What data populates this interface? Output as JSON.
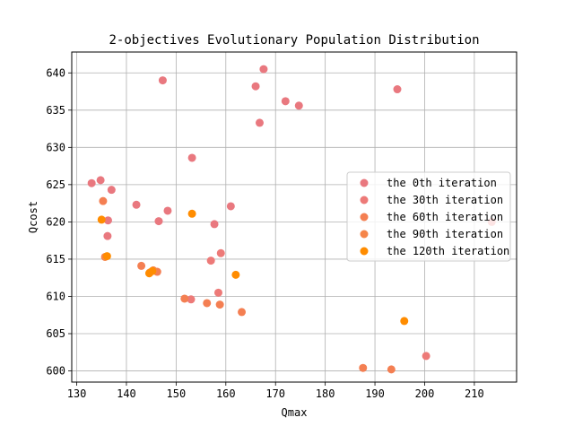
{
  "chart_data": {
    "type": "scatter",
    "title": "2-objectives Evolutionary Population Distribution",
    "xlabel": "Qmax",
    "ylabel": "Qcost",
    "xlim": [
      129,
      218.5
    ],
    "ylim": [
      598.5,
      642.8
    ],
    "xticks": [
      130,
      140,
      150,
      160,
      170,
      180,
      190,
      200,
      210
    ],
    "yticks": [
      600,
      605,
      610,
      615,
      620,
      625,
      630,
      635,
      640
    ],
    "grid": true,
    "legend_position": "right",
    "series": [
      {
        "name": "the 0th iteration",
        "color": "#e9787f",
        "points": [
          [
            147.3,
            639.0
          ],
          [
            167.6,
            640.5
          ],
          [
            166.0,
            638.2
          ],
          [
            194.5,
            637.8
          ],
          [
            172.0,
            636.2
          ],
          [
            174.7,
            635.6
          ],
          [
            166.8,
            633.3
          ],
          [
            153.2,
            628.6
          ],
          [
            133.0,
            625.2
          ],
          [
            134.8,
            625.6
          ],
          [
            137.0,
            624.3
          ],
          [
            142.0,
            622.3
          ],
          [
            148.3,
            621.5
          ],
          [
            161.0,
            622.1
          ],
          [
            146.5,
            620.1
          ],
          [
            157.7,
            619.7
          ],
          [
            136.3,
            620.2
          ],
          [
            136.2,
            618.1
          ]
        ]
      },
      {
        "name": "the 30th iteration",
        "color": "#ed7a78",
        "points": [
          [
            159.0,
            615.8
          ],
          [
            157.0,
            614.8
          ],
          [
            158.5,
            610.5
          ],
          [
            153.0,
            609.6
          ],
          [
            200.3,
            602.0
          ],
          [
            213.5,
            620.0
          ]
        ]
      },
      {
        "name": "the 60th iteration",
        "color": "#f47f52",
        "points": [
          [
            135.3,
            622.8
          ],
          [
            143.0,
            614.1
          ],
          [
            146.2,
            613.3
          ],
          [
            151.7,
            609.7
          ],
          [
            156.2,
            609.1
          ],
          [
            158.8,
            608.9
          ],
          [
            163.2,
            607.9
          ],
          [
            187.6,
            600.4
          ],
          [
            193.3,
            600.2
          ]
        ]
      },
      {
        "name": "the 90th iteration",
        "color": "#f5854a",
        "points": [
          [
            135.7,
            615.3
          ],
          [
            144.7,
            613.2
          ],
          [
            145.4,
            613.5
          ]
        ]
      },
      {
        "name": "the 120th iteration",
        "color": "#ff8c00",
        "points": [
          [
            153.2,
            621.1
          ],
          [
            135.0,
            620.3
          ],
          [
            136.1,
            615.4
          ],
          [
            144.6,
            613.1
          ],
          [
            145.2,
            613.4
          ],
          [
            162.0,
            612.9
          ],
          [
            195.9,
            606.7
          ]
        ]
      }
    ]
  }
}
